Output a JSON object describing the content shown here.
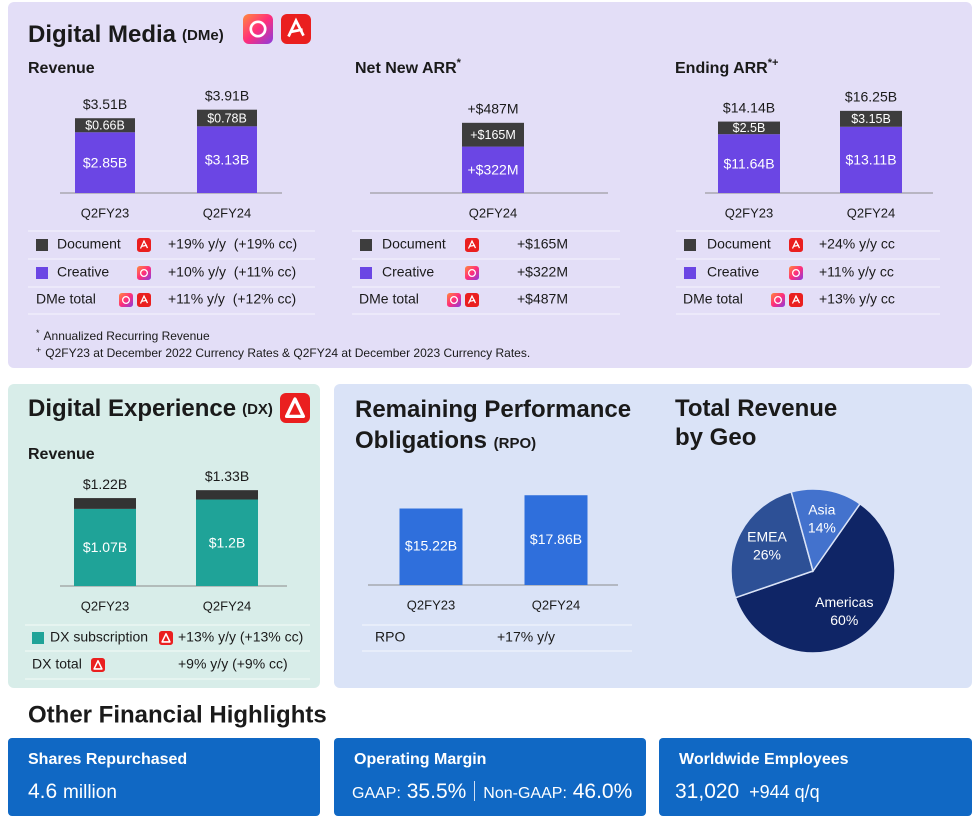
{
  "dme": {
    "title": "Digital Media",
    "abbr": "(DMe)",
    "charts": [
      {
        "type": "stacked_bar",
        "title": "Revenue",
        "categories": [
          "Q2FY23",
          "Q2FY24"
        ],
        "series": [
          {
            "name": "Document",
            "color": "#3d3d3d",
            "values": [
              0.66,
              0.78
            ],
            "value_labels": [
              "$0.66B",
              "$0.78B"
            ],
            "growth": "+19% y/y  (+19% cc)"
          },
          {
            "name": "Creative",
            "color": "#6b46e4",
            "values": [
              2.85,
              3.13
            ],
            "value_labels": [
              "$2.85B",
              "$3.13B"
            ],
            "growth": "+10% y/y  (+11% cc)"
          }
        ],
        "totals": {
          "values": [
            3.51,
            3.91
          ],
          "value_labels": [
            "$3.51B",
            "$3.91B"
          ],
          "name": "DMe total",
          "growth": "+11% y/y  (+12% cc)"
        },
        "ylim": [
          0,
          4.6
        ]
      },
      {
        "type": "stacked_bar",
        "title": "Net New ARR",
        "title_mark": "*",
        "categories": [
          "Q2FY24"
        ],
        "series": [
          {
            "name": "Document",
            "color": "#3d3d3d",
            "values": [
              165
            ],
            "value_labels": [
              "+$165M"
            ]
          },
          {
            "name": "Creative",
            "color": "#6b46e4",
            "values": [
              322
            ],
            "value_labels": [
              "+$322M"
            ]
          }
        ],
        "totals": {
          "values": [
            487
          ],
          "value_labels": [
            "+$487M"
          ],
          "name": "DMe total"
        },
        "ylim": [
          0,
          680
        ]
      },
      {
        "type": "stacked_bar",
        "title": "Ending ARR",
        "title_mark": "*+",
        "categories": [
          "Q2FY23",
          "Q2FY24"
        ],
        "series": [
          {
            "name": "Document",
            "color": "#3d3d3d",
            "values": [
              2.5,
              3.15
            ],
            "value_labels": [
              "$2.5B",
              "$3.15B"
            ],
            "growth": "+24% y/y cc"
          },
          {
            "name": "Creative",
            "color": "#6b46e4",
            "values": [
              11.64,
              13.11
            ],
            "value_labels": [
              "$11.64B",
              "$13.11B"
            ],
            "growth": "+11% y/y cc"
          }
        ],
        "totals": {
          "values": [
            14.14,
            16.25
          ],
          "value_labels": [
            "$14.14B",
            "$16.25B"
          ],
          "name": "DMe total",
          "growth": "+13% y/y cc"
        },
        "ylim": [
          0,
          19.4
        ]
      }
    ],
    "footnotes": [
      {
        "mark": "*",
        "text": "Annualized Recurring Revenue"
      },
      {
        "mark": "+",
        "text": "Q2FY23 at December 2022 Currency Rates & Q2FY24 at December 2023 Currency Rates."
      }
    ]
  },
  "dx": {
    "title": "Digital Experience",
    "abbr": "(DX)",
    "chart": {
      "type": "stacked_bar",
      "title": "Revenue",
      "categories": [
        "Q2FY23",
        "Q2FY24"
      ],
      "series": [
        {
          "color": "#333333",
          "values": [
            0.15,
            0.13
          ]
        },
        {
          "name": "DX subscription",
          "color": "#1fa398",
          "values": [
            1.07,
            1.2
          ],
          "value_labels": [
            "$1.07B",
            "$1.2B"
          ],
          "growth": "+13% y/y (+13% cc)"
        }
      ],
      "totals": {
        "values": [
          1.22,
          1.33
        ],
        "value_labels": [
          "$1.22B",
          "$1.33B"
        ],
        "name": "DX total",
        "growth": "+9% y/y (+9% cc)"
      },
      "ylim": [
        0,
        1.36
      ]
    }
  },
  "rpo": {
    "title": "Remaining Performance Obligations",
    "abbr": "(RPO)",
    "chart": {
      "type": "bar",
      "categories": [
        "Q2FY23",
        "Q2FY24"
      ],
      "values": [
        15.22,
        17.86
      ],
      "value_labels": [
        "$15.22B",
        "$17.86B"
      ],
      "color": "#2f6fdc",
      "name": "RPO",
      "growth": "+17% y/y",
      "ylim": [
        0,
        19.3
      ]
    }
  },
  "geo": {
    "title": "Total Revenue by Geo",
    "chart": {
      "type": "pie",
      "categories": [
        "Americas",
        "EMEA",
        "Asia"
      ],
      "values": [
        60,
        26,
        14
      ],
      "value_labels": [
        "60%",
        "26%",
        "14%"
      ],
      "colors": [
        "#0f2566",
        "#2d5096",
        "#4372cd"
      ]
    }
  },
  "highlights": {
    "title": "Other Financial Highlights",
    "cards": [
      {
        "title": "Shares Repurchased",
        "value": "4.6",
        "unit": "million"
      },
      {
        "title": "Operating Margin",
        "gaap_label": "GAAP:",
        "gaap": "35.5%",
        "non_gaap_label": "Non-GAAP:",
        "non_gaap": "46.0%"
      },
      {
        "title": "Worldwide Employees",
        "value": "31,020",
        "change": "+944 q/q"
      }
    ]
  }
}
